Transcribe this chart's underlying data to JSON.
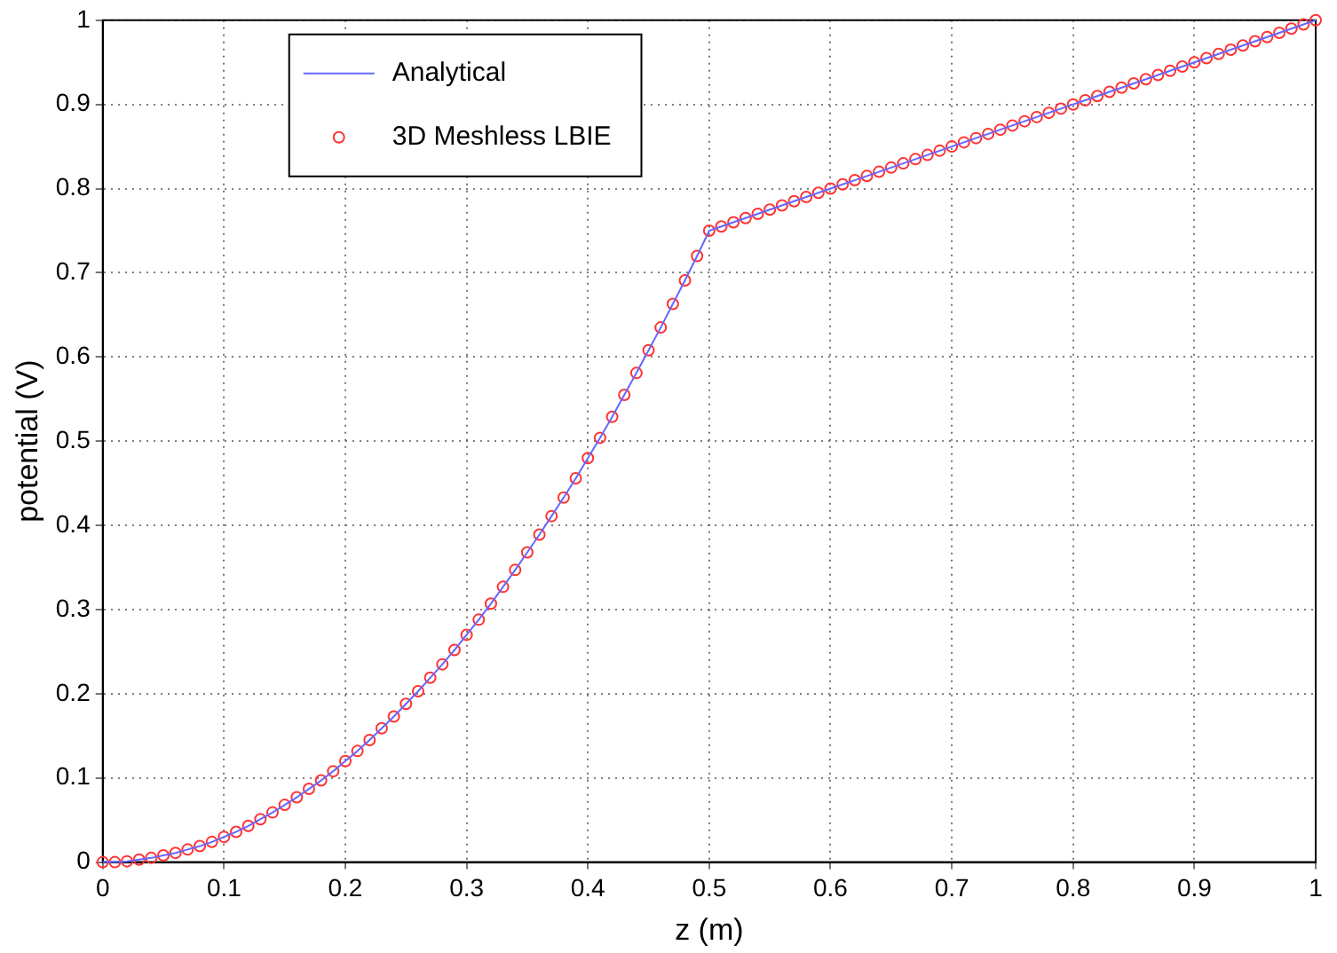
{
  "chart_data": {
    "type": "line",
    "xlabel": "z (m)",
    "ylabel": "potential (V)",
    "x": [
      0,
      0.01,
      0.02,
      0.03,
      0.04,
      0.05,
      0.06,
      0.07,
      0.08,
      0.09,
      0.1,
      0.11,
      0.12,
      0.13,
      0.14,
      0.15,
      0.16,
      0.17,
      0.18,
      0.19,
      0.2,
      0.21,
      0.22,
      0.23,
      0.24,
      0.25,
      0.26,
      0.27,
      0.28,
      0.29,
      0.3,
      0.31,
      0.32,
      0.33,
      0.34,
      0.35,
      0.36,
      0.37,
      0.38,
      0.39,
      0.4,
      0.41,
      0.42,
      0.43,
      0.44,
      0.45,
      0.46,
      0.47,
      0.48,
      0.49,
      0.5,
      0.51,
      0.52,
      0.53,
      0.54,
      0.55,
      0.56,
      0.57,
      0.58,
      0.59,
      0.6,
      0.61,
      0.62,
      0.63,
      0.64,
      0.65,
      0.66,
      0.67,
      0.68,
      0.69,
      0.7,
      0.71,
      0.72,
      0.73,
      0.74,
      0.75,
      0.76,
      0.77,
      0.78,
      0.79,
      0.8,
      0.81,
      0.82,
      0.83,
      0.84,
      0.85,
      0.86,
      0.87,
      0.88,
      0.89,
      0.9,
      0.91,
      0.92,
      0.93,
      0.94,
      0.95,
      0.96,
      0.97,
      0.98,
      0.99,
      1
    ],
    "series": [
      {
        "name": "Analytical",
        "marker": "none",
        "color": "#6666ff",
        "values": [
          0,
          0,
          0.001,
          0.003,
          0.005,
          0.008,
          0.011,
          0.015,
          0.019,
          0.024,
          0.03,
          0.036,
          0.043,
          0.051,
          0.059,
          0.068,
          0.077,
          0.087,
          0.097,
          0.108,
          0.12,
          0.132,
          0.145,
          0.159,
          0.173,
          0.188,
          0.203,
          0.219,
          0.235,
          0.252,
          0.27,
          0.288,
          0.307,
          0.327,
          0.347,
          0.368,
          0.389,
          0.411,
          0.433,
          0.456,
          0.48,
          0.504,
          0.529,
          0.555,
          0.581,
          0.608,
          0.635,
          0.663,
          0.691,
          0.72,
          0.75,
          0.755,
          0.76,
          0.765,
          0.77,
          0.775,
          0.78,
          0.785,
          0.79,
          0.795,
          0.8,
          0.805,
          0.81,
          0.815,
          0.82,
          0.825,
          0.83,
          0.835,
          0.84,
          0.845,
          0.85,
          0.855,
          0.86,
          0.865,
          0.87,
          0.875,
          0.88,
          0.885,
          0.89,
          0.895,
          0.9,
          0.905,
          0.91,
          0.915,
          0.92,
          0.925,
          0.93,
          0.935,
          0.94,
          0.945,
          0.95,
          0.955,
          0.96,
          0.965,
          0.97,
          0.975,
          0.98,
          0.985,
          0.99,
          0.995,
          1
        ]
      },
      {
        "name": "3D Meshless LBIE",
        "type": "scatter",
        "marker": "circle",
        "color": "#ff3333",
        "values": [
          0,
          0,
          0.001,
          0.003,
          0.005,
          0.008,
          0.011,
          0.015,
          0.019,
          0.024,
          0.03,
          0.036,
          0.043,
          0.051,
          0.059,
          0.068,
          0.077,
          0.087,
          0.097,
          0.108,
          0.12,
          0.132,
          0.145,
          0.159,
          0.173,
          0.188,
          0.203,
          0.219,
          0.235,
          0.252,
          0.27,
          0.288,
          0.307,
          0.327,
          0.347,
          0.368,
          0.389,
          0.411,
          0.433,
          0.456,
          0.48,
          0.504,
          0.529,
          0.555,
          0.581,
          0.608,
          0.635,
          0.663,
          0.691,
          0.72,
          0.75,
          0.755,
          0.76,
          0.765,
          0.77,
          0.775,
          0.78,
          0.785,
          0.79,
          0.795,
          0.8,
          0.805,
          0.81,
          0.815,
          0.82,
          0.825,
          0.83,
          0.835,
          0.84,
          0.845,
          0.85,
          0.855,
          0.86,
          0.865,
          0.87,
          0.875,
          0.88,
          0.885,
          0.89,
          0.895,
          0.9,
          0.905,
          0.91,
          0.915,
          0.92,
          0.925,
          0.93,
          0.935,
          0.94,
          0.945,
          0.95,
          0.955,
          0.96,
          0.965,
          0.97,
          0.975,
          0.98,
          0.985,
          0.99,
          0.995,
          1
        ]
      }
    ],
    "xlim": [
      0,
      1
    ],
    "ylim": [
      0,
      1
    ],
    "xticks": [
      0,
      0.1,
      0.2,
      0.3,
      0.4,
      0.5,
      0.6,
      0.7,
      0.8,
      0.9,
      1
    ],
    "yticks": [
      0,
      0.1,
      0.2,
      0.3,
      0.4,
      0.5,
      0.6,
      0.7,
      0.8,
      0.9,
      1
    ],
    "grid": true,
    "legend": "top left"
  }
}
